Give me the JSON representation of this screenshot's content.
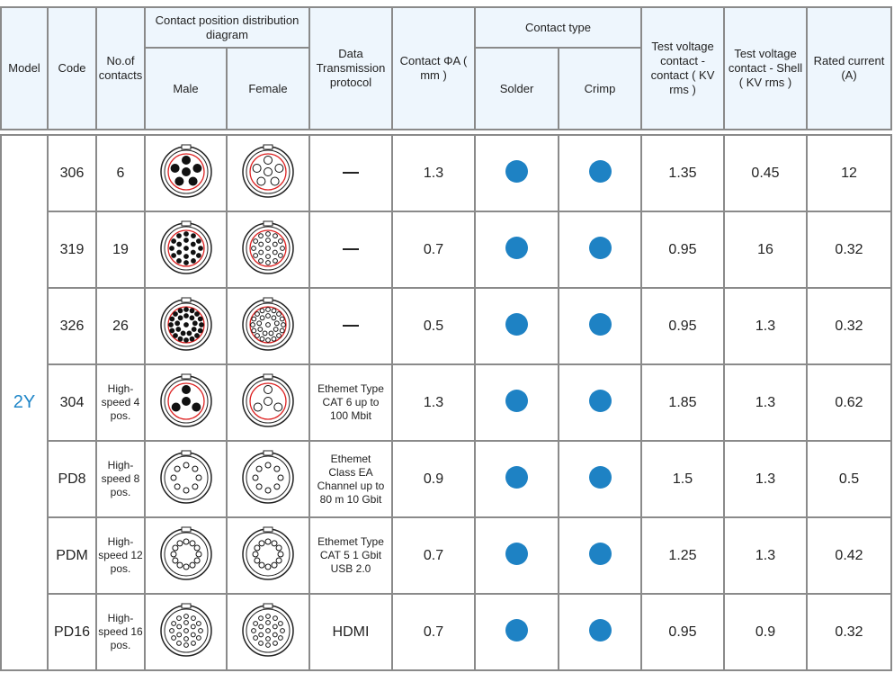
{
  "header": {
    "model": "Model",
    "code": "Code",
    "contacts": "No.of contacts",
    "diagram": "Contact position distribution diagram",
    "male": "Male",
    "female": "Female",
    "protocol": "Data Transmission protocol",
    "contact_dia": "Contact ΦA ( mm )",
    "contact_type": "Contact type",
    "solder": "Solder",
    "crimp": "Crimp",
    "tv_contact": "Test voltage contact - contact ( KV rms )",
    "tv_shell": "Test voltage contact - Shell ( KV rms )",
    "rated": "Rated current (A)"
  },
  "model": "2Y",
  "rows": [
    {
      "code": "306",
      "contacts": "6",
      "pins": 6,
      "protocol": "—",
      "dia": "1.3",
      "tvc": "1.35",
      "tvs": "0.45",
      "rated": "12"
    },
    {
      "code": "319",
      "contacts": "19",
      "pins": 19,
      "protocol": "—",
      "dia": "0.7",
      "tvc": "0.95",
      "tvs": "16",
      "rated": "0.32"
    },
    {
      "code": "326",
      "contacts": "26",
      "pins": 26,
      "protocol": "—",
      "dia": "0.5",
      "tvc": "0.95",
      "tvs": "1.3",
      "rated": "0.32"
    },
    {
      "code": "304",
      "contacts": "High-speed 4 pos.",
      "pins": 4,
      "protocol": "Ethemet Type CAT 6 up to 100 Mbit",
      "dia": "1.3",
      "tvc": "1.85",
      "tvs": "1.3",
      "rated": "0.62"
    },
    {
      "code": "PD8",
      "contacts": "High-speed 8 pos.",
      "pins": 8,
      "protocol": "Ethemet Class EA Channel up to 80 m 10 Gbit",
      "dia": "0.9",
      "tvc": "1.5",
      "tvs": "1.3",
      "rated": "0.5"
    },
    {
      "code": "PDM",
      "contacts": "High-speed 12 pos.",
      "pins": 12,
      "protocol": "Ethemet Type CAT 5 1 Gbit USB 2.0",
      "dia": "0.7",
      "tvc": "1.25",
      "tvs": "1.3",
      "rated": "0.42"
    },
    {
      "code": "PD16",
      "contacts": "High-speed 16 pos.",
      "pins": 16,
      "protocol": "HDMI",
      "dia": "0.7",
      "tvc": "0.95",
      "tvs": "0.9",
      "rated": "0.32"
    }
  ],
  "colors": {
    "dot": "#1e82c4",
    "model": "#1f86c8",
    "header_bg": "#eef6fd"
  }
}
